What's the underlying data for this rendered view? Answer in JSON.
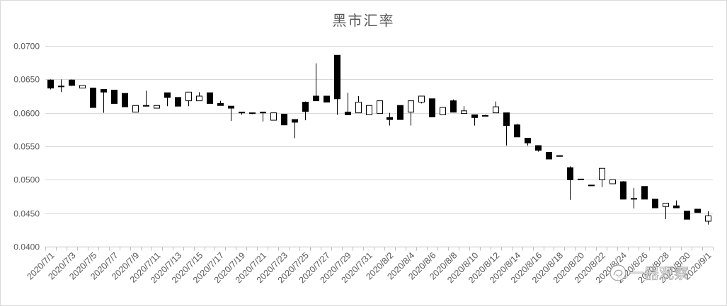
{
  "chart_data": {
    "type": "candlestick",
    "title": "黑市汇率",
    "xlabel": "",
    "ylabel": "",
    "ylim": [
      0.04,
      0.07
    ],
    "y_ticks": [
      "0.0400",
      "0.0450",
      "0.0500",
      "0.0550",
      "0.0600",
      "0.0650",
      "0.0700"
    ],
    "grid": true,
    "legend": "none",
    "categories": [
      "2020/7/1",
      "2020/7/2",
      "2020/7/3",
      "2020/7/4",
      "2020/7/5",
      "2020/7/6",
      "2020/7/7",
      "2020/7/8",
      "2020/7/9",
      "2020/7/10",
      "2020/7/11",
      "2020/7/12",
      "2020/7/13",
      "2020/7/14",
      "2020/7/15",
      "2020/7/16",
      "2020/7/17",
      "2020/7/18",
      "2020/7/19",
      "2020/7/20",
      "2020/7/21",
      "2020/7/22",
      "2020/7/23",
      "2020/7/24",
      "2020/7/25",
      "2020/7/26",
      "2020/7/27",
      "2020/7/28",
      "2020/7/29",
      "2020/7/30",
      "2020/7/31",
      "2020/8/1",
      "2020/8/2",
      "2020/8/3",
      "2020/8/4",
      "2020/8/5",
      "2020/8/6",
      "2020/8/7",
      "2020/8/8",
      "2020/8/9",
      "2020/8/10",
      "2020/8/11",
      "2020/8/12",
      "2020/8/13",
      "2020/8/14",
      "2020/8/15",
      "2020/8/16",
      "2020/8/17",
      "2020/8/18",
      "2020/8/19",
      "2020/8/20",
      "2020/8/21",
      "2020/8/22",
      "2020/8/23",
      "2020/8/24",
      "2020/8/25",
      "2020/8/26",
      "2020/8/27",
      "2020/8/28",
      "2020/8/29",
      "2020/8/30",
      "2020/8/31",
      "2020/9/1"
    ],
    "x_tick_labels": [
      "2020/7/1",
      "2020/7/3",
      "2020/7/5",
      "2020/7/7",
      "2020/7/9",
      "2020/7/11",
      "2020/7/13",
      "2020/7/15",
      "2020/7/17",
      "2020/7/19",
      "2020/7/21",
      "2020/7/23",
      "2020/7/25",
      "2020/7/27",
      "2020/7/29",
      "2020/7/31",
      "2020/8/2",
      "2020/8/4",
      "2020/8/6",
      "2020/8/8",
      "2020/8/10",
      "2020/8/12",
      "2020/8/14",
      "2020/8/16",
      "2020/8/18",
      "2020/8/20",
      "2020/8/22",
      "2020/8/24",
      "2020/8/26",
      "2020/8/28",
      "2020/8/30",
      "2020/9/1"
    ],
    "series": [
      {
        "open": [
          0.0649,
          0.064,
          0.0649,
          0.0637,
          0.0637,
          0.0635,
          0.0634,
          0.0629,
          0.0601,
          0.0611,
          0.0607,
          0.063,
          0.0623,
          0.0618,
          0.0618,
          0.063,
          0.0614,
          0.061,
          0.0601,
          0.06,
          0.0601,
          0.0589,
          0.0598,
          0.059,
          0.0616,
          0.0625,
          0.0625,
          0.0686,
          0.0601,
          0.06,
          0.0597,
          0.0599,
          0.0593,
          0.0611,
          0.0601,
          0.0616,
          0.0621,
          0.0597,
          0.0618,
          0.0599,
          0.0597,
          0.0596,
          0.06,
          0.06,
          0.0582,
          0.0562,
          0.0551,
          0.0541,
          0.0536,
          0.0518,
          0.0501,
          0.0492,
          0.05,
          0.0494,
          0.0497,
          0.0472,
          0.049,
          0.0471,
          0.046,
          0.0461,
          0.0453,
          0.0456,
          0.0438
        ],
        "high": [
          0.065,
          0.065,
          0.065,
          0.0641,
          0.0637,
          0.0635,
          0.0634,
          0.0629,
          0.0611,
          0.0633,
          0.0611,
          0.063,
          0.0623,
          0.0631,
          0.0631,
          0.063,
          0.0618,
          0.061,
          0.0601,
          0.06,
          0.0601,
          0.06,
          0.0598,
          0.059,
          0.0617,
          0.0674,
          0.0625,
          0.0686,
          0.063,
          0.0625,
          0.0611,
          0.0618,
          0.06,
          0.0611,
          0.0618,
          0.0625,
          0.0621,
          0.0608,
          0.062,
          0.061,
          0.0597,
          0.0597,
          0.0617,
          0.06,
          0.0584,
          0.0562,
          0.0551,
          0.0541,
          0.0536,
          0.052,
          0.0501,
          0.0492,
          0.0517,
          0.05,
          0.0498,
          0.0488,
          0.049,
          0.0471,
          0.0465,
          0.0469,
          0.0453,
          0.0456,
          0.0453
        ],
        "low": [
          0.0635,
          0.0631,
          0.064,
          0.0637,
          0.0608,
          0.06,
          0.0614,
          0.0609,
          0.0601,
          0.061,
          0.0607,
          0.061,
          0.061,
          0.061,
          0.0618,
          0.0614,
          0.0611,
          0.0588,
          0.0597,
          0.0598,
          0.0587,
          0.0589,
          0.0582,
          0.0562,
          0.0589,
          0.0618,
          0.0616,
          0.0597,
          0.0597,
          0.06,
          0.0597,
          0.0599,
          0.0581,
          0.059,
          0.0581,
          0.0614,
          0.0594,
          0.0597,
          0.0601,
          0.0599,
          0.0581,
          0.0596,
          0.06,
          0.0551,
          0.0564,
          0.0551,
          0.0542,
          0.0531,
          0.0535,
          0.047,
          0.05,
          0.0491,
          0.0489,
          0.0494,
          0.0471,
          0.0457,
          0.0471,
          0.0458,
          0.0441,
          0.0458,
          0.0441,
          0.0451,
          0.0433
        ],
        "close": [
          0.0637,
          0.064,
          0.0641,
          0.0641,
          0.0608,
          0.0631,
          0.0614,
          0.0609,
          0.0611,
          0.0611,
          0.0611,
          0.0623,
          0.061,
          0.0631,
          0.0625,
          0.0614,
          0.0611,
          0.0607,
          0.06,
          0.0599,
          0.06,
          0.06,
          0.0582,
          0.0586,
          0.0602,
          0.0618,
          0.0616,
          0.0621,
          0.0597,
          0.0616,
          0.0611,
          0.0618,
          0.059,
          0.059,
          0.0618,
          0.0625,
          0.0594,
          0.0608,
          0.0601,
          0.0603,
          0.0593,
          0.0596,
          0.0609,
          0.0581,
          0.0564,
          0.0555,
          0.0544,
          0.0531,
          0.0535,
          0.05,
          0.05,
          0.0491,
          0.0517,
          0.05,
          0.0471,
          0.0471,
          0.0471,
          0.0458,
          0.0465,
          0.0458,
          0.0441,
          0.0451,
          0.0446
        ]
      }
    ],
    "colors": {
      "up": "#ffffff",
      "down": "#000000",
      "wick": "#000000",
      "grid": "#d9d9d9",
      "axis": "#bfbfbf",
      "text": "#595959"
    }
  },
  "watermark": "一器观察"
}
